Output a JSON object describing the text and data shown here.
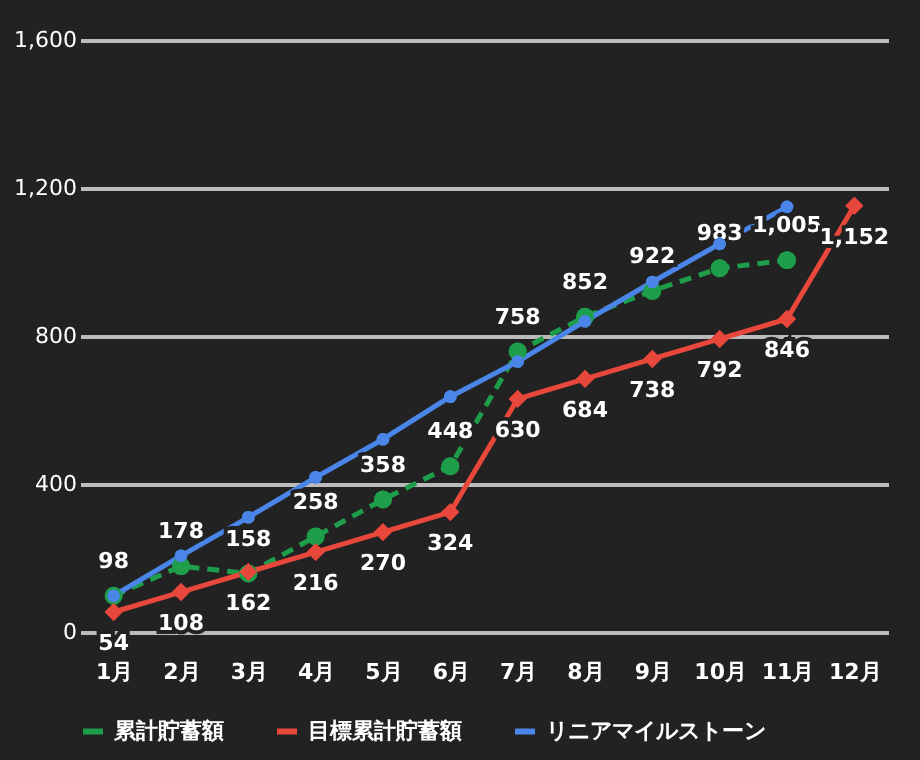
{
  "chart_data": {
    "type": "line",
    "categories": [
      "1月",
      "2月",
      "3月",
      "4月",
      "5月",
      "6月",
      "7月",
      "8月",
      "9月",
      "10月",
      "11月",
      "12月"
    ],
    "series": [
      {
        "name": "累計貯蓄額",
        "color": "#1e9e4b",
        "marker": "circle",
        "line_style": "dashed",
        "values": [
          98,
          178,
          158,
          258,
          358,
          448,
          758,
          852,
          922,
          983,
          1005,
          null
        ],
        "value_labels": [
          "98",
          "178",
          "158",
          "258",
          "358",
          "448",
          "758",
          "852",
          "922",
          "983",
          "1,005",
          null
        ]
      },
      {
        "name": "目標累計貯蓄額",
        "color": "#e8473b",
        "marker": "diamond",
        "line_style": "solid",
        "values": [
          54,
          108,
          162,
          216,
          270,
          324,
          630,
          684,
          738,
          792,
          846,
          1152
        ],
        "value_labels": [
          "54",
          "108",
          "162",
          "216",
          "270",
          "324",
          "630",
          "684",
          "738",
          "792",
          "846",
          "1,152"
        ]
      },
      {
        "name": "リニアマイルストーン",
        "color": "#4a86e8",
        "marker": "circle",
        "line_style": "solid",
        "values": [
          98,
          206,
          310,
          418,
          521,
          636,
          731,
          840,
          946,
          1049,
          1149,
          null
        ]
      }
    ],
    "ylim": [
      0,
      1600
    ],
    "yticks": [
      0,
      400,
      800,
      {
        "value": 1200,
        "label": "1,200"
      },
      {
        "value": 1600,
        "label": "1,600"
      }
    ],
    "grid": "y",
    "legend": "bottom"
  }
}
